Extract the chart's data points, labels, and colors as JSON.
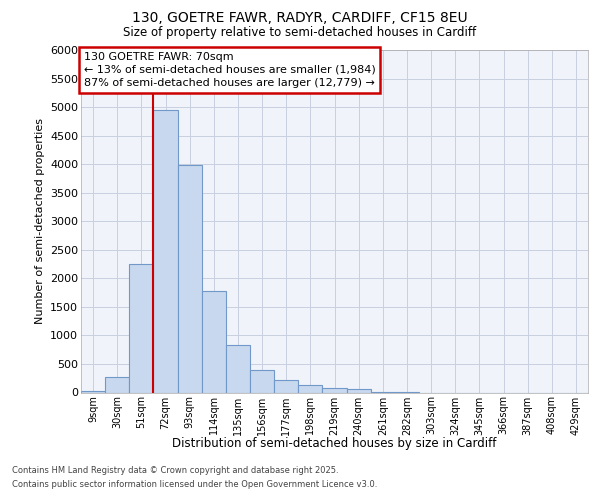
{
  "title_line1": "130, GOETRE FAWR, RADYR, CARDIFF, CF15 8EU",
  "title_line2": "Size of property relative to semi-detached houses in Cardiff",
  "xlabel": "Distribution of semi-detached houses by size in Cardiff",
  "ylabel": "Number of semi-detached properties",
  "categories": [
    "9sqm",
    "30sqm",
    "51sqm",
    "72sqm",
    "93sqm",
    "114sqm",
    "135sqm",
    "156sqm",
    "177sqm",
    "198sqm",
    "219sqm",
    "240sqm",
    "261sqm",
    "282sqm",
    "303sqm",
    "324sqm",
    "345sqm",
    "366sqm",
    "387sqm",
    "408sqm",
    "429sqm"
  ],
  "values": [
    28,
    270,
    2250,
    4950,
    3980,
    1780,
    840,
    390,
    220,
    130,
    85,
    60,
    10,
    5,
    0,
    0,
    0,
    0,
    0,
    0,
    0
  ],
  "bar_color": "#c8d8ee",
  "bar_edge_color": "#7098c8",
  "grid_color": "#c8d0e0",
  "bg_color": "#f0f4fa",
  "annotation_text": "130 GOETRE FAWR: 70sqm\n← 13% of semi-detached houses are smaller (1,984)\n87% of semi-detached houses are larger (12,779) →",
  "annotation_box_edgecolor": "#cc0000",
  "vline_color": "#cc0000",
  "ylim_max": 6000,
  "ytick_step": 500,
  "vline_x_index": 3,
  "footer_line1": "Contains HM Land Registry data © Crown copyright and database right 2025.",
  "footer_line2": "Contains public sector information licensed under the Open Government Licence v3.0."
}
